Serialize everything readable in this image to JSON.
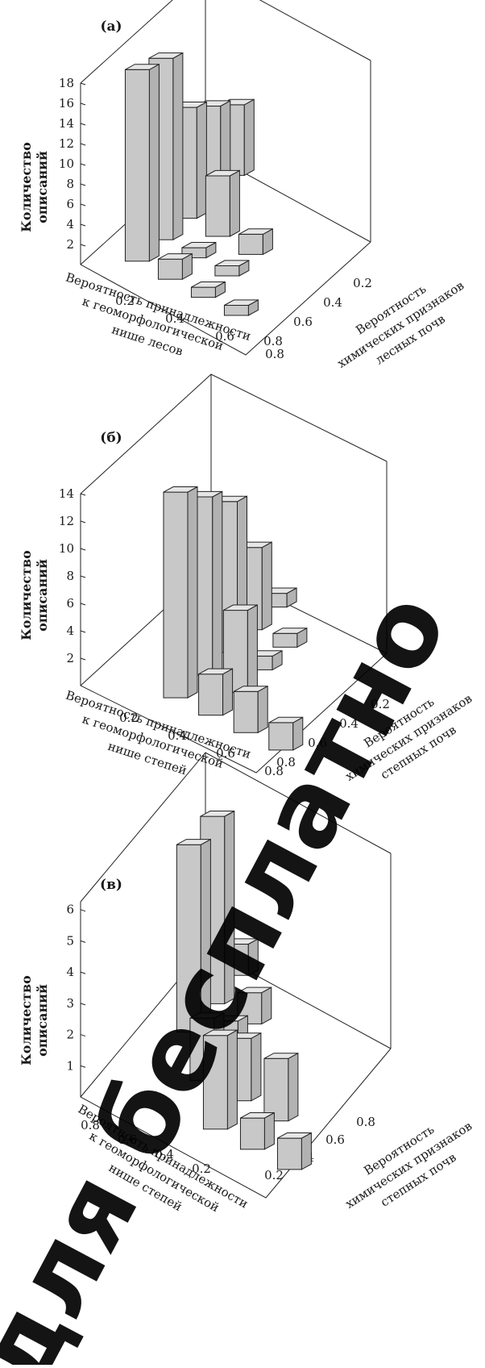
{
  "colors": {
    "bar_front": "#c8c8c8",
    "bar_side": "#b2b2b2",
    "bar_top": "#e6e6e6",
    "stroke": "#222222",
    "watermark": "#000000"
  },
  "watermark": {
    "text": "для бесплатно"
  },
  "chart_data": [
    {
      "type": "bar3d",
      "panel_label": "(а)",
      "ylabel": "Количество описаний",
      "ylabel_lines": [
        "Количество",
        "описаний"
      ],
      "yticks": [
        "2",
        "4",
        "6",
        "8",
        "10",
        "12",
        "14",
        "16",
        "18"
      ],
      "ylim": [
        0,
        18
      ],
      "x_axis_label": "Вероятность принадлежности к геоморфологической нише лесов",
      "x_axis_label_lines": [
        "Вероятность принадлежности",
        "к геоморфологической",
        "нише лесов"
      ],
      "x_ticks": [
        "0.2",
        "0.4",
        "0.6",
        "0.8"
      ],
      "z_axis_label": "Вероятность химических признаков лесных почв",
      "z_axis_label_lines": [
        "Вероятность",
        "химических признаков",
        "лесных почв"
      ],
      "z_ticks": [
        "0.2",
        "0.4",
        "0.6",
        "0.8"
      ],
      "bars": [
        {
          "x": 0.2,
          "z": 0.2,
          "value": 19
        },
        {
          "x": 0.2,
          "z": 0.4,
          "value": 18
        },
        {
          "x": 0.2,
          "z": 0.6,
          "value": 11
        },
        {
          "x": 0.2,
          "z": 0.8,
          "value": 9
        },
        {
          "x": 0.2,
          "z": 1.0,
          "value": 7
        },
        {
          "x": 0.4,
          "z": 0.2,
          "value": 2
        },
        {
          "x": 0.4,
          "z": 0.4,
          "value": 1
        },
        {
          "x": 0.4,
          "z": 0.6,
          "value": 6
        },
        {
          "x": 0.6,
          "z": 0.2,
          "value": 1
        },
        {
          "x": 0.6,
          "z": 0.4,
          "value": 1
        },
        {
          "x": 0.6,
          "z": 0.6,
          "value": 2
        },
        {
          "x": 0.8,
          "z": 0.2,
          "value": 1
        }
      ]
    },
    {
      "type": "bar3d",
      "panel_label": "(б)",
      "ylabel": "Количество описаний",
      "ylabel_lines": [
        "Количество",
        "описаний"
      ],
      "yticks": [
        "2",
        "4",
        "6",
        "8",
        "10",
        "12",
        "14"
      ],
      "ylim": [
        0,
        14
      ],
      "x_axis_label": "Вероятность принадлежности к геоморфологической нише степей",
      "x_axis_label_lines": [
        "Вероятность принадлежности",
        "к геоморфологической",
        "нише степей"
      ],
      "x_ticks": [
        "0.2",
        "0.4",
        "0.6",
        "0.8"
      ],
      "z_axis_label": "Вероятность химических признаков степных почв",
      "z_axis_label_lines": [
        "Вероятность",
        "химических признаков",
        "степных почв"
      ],
      "z_ticks": [
        "0.2",
        "0.4",
        "0.6",
        "0.8"
      ],
      "bars": [
        {
          "x": 0.4,
          "z": 0.2,
          "value": 15
        },
        {
          "x": 0.4,
          "z": 0.4,
          "value": 13
        },
        {
          "x": 0.4,
          "z": 0.6,
          "value": 11
        },
        {
          "x": 0.4,
          "z": 0.8,
          "value": 6
        },
        {
          "x": 0.4,
          "z": 1.0,
          "value": 1
        },
        {
          "x": 0.6,
          "z": 0.2,
          "value": 3
        },
        {
          "x": 0.6,
          "z": 0.4,
          "value": 6
        },
        {
          "x": 0.6,
          "z": 0.6,
          "value": 1
        },
        {
          "x": 0.6,
          "z": 0.8,
          "value": 1
        },
        {
          "x": 0.8,
          "z": 0.2,
          "value": 3
        },
        {
          "x": 1.0,
          "z": 0.2,
          "value": 2
        }
      ]
    },
    {
      "type": "bar3d",
      "panel_label": "(в)",
      "ylabel": "Количество описаний",
      "ylabel_lines": [
        "Количество",
        "описаний"
      ],
      "yticks": [
        "1",
        "2",
        "3",
        "4",
        "5",
        "6"
      ],
      "ylim": [
        0,
        6
      ],
      "x_axis_label": "Вероятность принадлежности к геоморфологической нише степей",
      "x_axis_label_lines": [
        "Вероятность принадлежности",
        "к геоморфологической",
        "нише степей"
      ],
      "x_ticks": [
        "0.8",
        "0.6",
        "0.4",
        "0.2"
      ],
      "z_axis_label": "Вероятность химических признаков степных почв",
      "z_axis_label_lines": [
        "Вероятность",
        "химических признаков",
        "степных почв"
      ],
      "z_ticks": [
        "0.2",
        "0.4",
        "0.6",
        "0.8"
      ],
      "bars": [
        {
          "x": 0.2,
          "z": 0.6,
          "value": 6
        },
        {
          "x": 0.2,
          "z": 0.8,
          "value": 6
        },
        {
          "x": 0.2,
          "z": 1.0,
          "value": 1
        },
        {
          "x": 0.4,
          "z": 0.4,
          "value": 2
        },
        {
          "x": 0.4,
          "z": 0.6,
          "value": 1
        },
        {
          "x": 0.4,
          "z": 0.8,
          "value": 1
        },
        {
          "x": 0.6,
          "z": 0.4,
          "value": 2
        },
        {
          "x": 0.6,
          "z": 0.2,
          "value": 3
        },
        {
          "x": 0.8,
          "z": 0.2,
          "value": 1
        },
        {
          "x": 0.8,
          "z": 0.4,
          "value": 2
        },
        {
          "x": 1.0,
          "z": 0.2,
          "value": 1
        }
      ]
    }
  ]
}
